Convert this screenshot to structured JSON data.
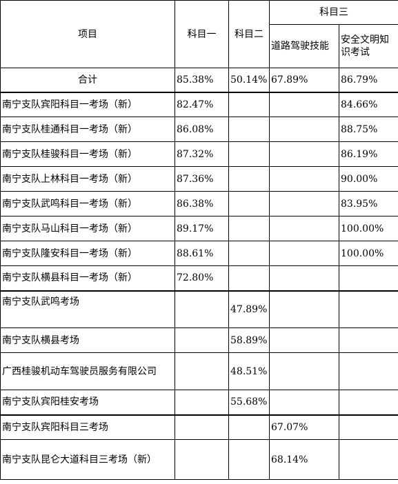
{
  "header": {
    "item": "项目",
    "subject1": "科目一",
    "subject2": "科目二",
    "subject3": "科目三",
    "road_driving": "道路驾驶技能",
    "safety_exam": "安全文明知识考试"
  },
  "total_row": {
    "name": "合计",
    "s1": "85.38%",
    "s2": "50.14%",
    "road": "67.89%",
    "safety": "86.79%"
  },
  "rows": [
    {
      "name": "南宁支队宾阳科目一考场（新）",
      "s1": "82.47%",
      "s2": "",
      "road": "",
      "safety": "84.66%"
    },
    {
      "name": "南宁支队桂通科目一考场（新）",
      "s1": "86.08%",
      "s2": "",
      "road": "",
      "safety": "88.75%"
    },
    {
      "name": "南宁支队桂骏科目一考场（新）",
      "s1": "87.32%",
      "s2": "",
      "road": "",
      "safety": "86.19%"
    },
    {
      "name": "南宁支队上林科目一考场（新）",
      "s1": "87.36%",
      "s2": "",
      "road": "",
      "safety": "90.00%"
    },
    {
      "name": "南宁支队武鸣科目一考场（新）",
      "s1": "86.38%",
      "s2": "",
      "road": "",
      "safety": "83.95%"
    },
    {
      "name": "南宁支队马山科目一考场（新）",
      "s1": "89.17%",
      "s2": "",
      "road": "",
      "safety": "100.00%"
    },
    {
      "name": "南宁支队隆安科目一考场（新）",
      "s1": "88.61%",
      "s2": "",
      "road": "",
      "safety": "100.00%"
    },
    {
      "name": "南宁支队横县科目一考场（新）",
      "s1": "72.80%",
      "s2": "",
      "road": "",
      "safety": ""
    },
    {
      "name": "南宁支队武鸣考场",
      "s1": "",
      "s2": "47.89%",
      "road": "",
      "safety": ""
    },
    {
      "name": "南宁支队横县考场",
      "s1": "",
      "s2": "58.89%",
      "road": "",
      "safety": ""
    },
    {
      "name": "广西桂骏机动车驾驶员服务有限公司",
      "s1": "",
      "s2": "48.51%",
      "road": "",
      "safety": ""
    },
    {
      "name": "南宁支队宾阳桂安考场",
      "s1": "",
      "s2": "55.68%",
      "road": "",
      "safety": ""
    },
    {
      "name": "南宁支队宾阳科目三考场",
      "s1": "",
      "s2": "",
      "road": "67.07%",
      "safety": ""
    },
    {
      "name": "南宁支队昆仑大道科目三考场（新）",
      "s1": "",
      "s2": "",
      "road": "68.14%",
      "safety": ""
    }
  ]
}
